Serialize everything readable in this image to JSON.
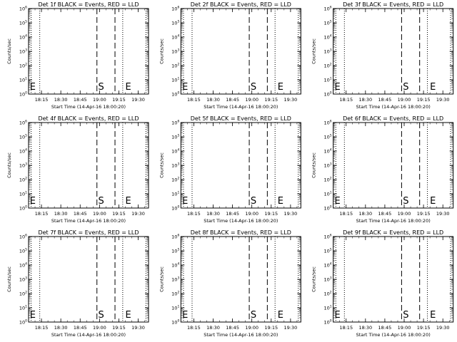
{
  "chart_data": [
    {
      "type": "line",
      "title": "Det 1f BLACK = Events, RED = LLD",
      "xlabel": "Start Time (14-Apr-16 18:00:20)",
      "ylabel": "Counts/sec",
      "x_range": [
        "18:05:00",
        "19:38:00"
      ],
      "y_scale": "log",
      "ylim": [
        1,
        1000000
      ],
      "x_ticks": [
        "18:15",
        "18:30",
        "18:45",
        "19:00",
        "19:15",
        "19:30"
      ],
      "y_ticks": [
        "10^0",
        "10^1",
        "10^2",
        "10^3",
        "10^4",
        "10^5",
        "10^6"
      ],
      "dotted_lines": [
        "18:07:00",
        "18:13:40",
        "19:18:00",
        "19:36:00"
      ],
      "dashed_lines": [
        "18:58:00",
        "19:12:00"
      ],
      "markers": [
        {
          "label": "E",
          "at": "18:06:00"
        },
        {
          "label": "S",
          "at": "18:59:00"
        },
        {
          "label": "E",
          "at": "19:20:00"
        }
      ],
      "series": []
    },
    {
      "type": "line",
      "title": "Det 2f BLACK = Events, RED = LLD",
      "xlabel": "Start Time (14-Apr-16 18:00:20)",
      "ylabel": "Counts/sec",
      "x_range": [
        "18:05:00",
        "19:38:00"
      ],
      "y_scale": "log",
      "ylim": [
        1,
        1000000
      ],
      "x_ticks": [
        "18:15",
        "18:30",
        "18:45",
        "19:00",
        "19:15",
        "19:30"
      ],
      "y_ticks": [
        "10^0",
        "10^1",
        "10^2",
        "10^3",
        "10^4",
        "10^5",
        "10^6"
      ],
      "dotted_lines": [
        "18:07:00",
        "18:13:40",
        "19:18:00",
        "19:36:00"
      ],
      "dashed_lines": [
        "18:58:00",
        "19:12:00"
      ],
      "markers": [
        {
          "label": "E",
          "at": "18:06:00"
        },
        {
          "label": "S",
          "at": "18:59:00"
        },
        {
          "label": "E",
          "at": "19:20:00"
        }
      ],
      "series": []
    },
    {
      "type": "line",
      "title": "Det 3f BLACK = Events, RED = LLD",
      "xlabel": "Start Time (14-Apr-16 18:00:20)",
      "ylabel": "Counts/sec",
      "x_range": [
        "18:05:00",
        "19:38:00"
      ],
      "y_scale": "log",
      "ylim": [
        1,
        1000000
      ],
      "x_ticks": [
        "18:15",
        "18:30",
        "18:45",
        "19:00",
        "19:15",
        "19:30"
      ],
      "y_ticks": [
        "10^0",
        "10^1",
        "10^2",
        "10^3",
        "10^4",
        "10^5",
        "10^6"
      ],
      "dotted_lines": [
        "18:07:00",
        "18:13:40",
        "19:18:00",
        "19:36:00"
      ],
      "dashed_lines": [
        "18:58:00",
        "19:12:00"
      ],
      "markers": [
        {
          "label": "E",
          "at": "18:06:00"
        },
        {
          "label": "S",
          "at": "18:59:00"
        },
        {
          "label": "E",
          "at": "19:20:00"
        }
      ],
      "series": []
    },
    {
      "type": "line",
      "title": "Det 4f BLACK = Events, RED = LLD",
      "xlabel": "Start Time (14-Apr-16 18:00:20)",
      "ylabel": "Counts/sec",
      "x_range": [
        "18:05:00",
        "19:38:00"
      ],
      "y_scale": "log",
      "ylim": [
        1,
        1000000
      ],
      "x_ticks": [
        "18:15",
        "18:30",
        "18:45",
        "19:00",
        "19:15",
        "19:30"
      ],
      "y_ticks": [
        "10^0",
        "10^1",
        "10^2",
        "10^3",
        "10^4",
        "10^5",
        "10^6"
      ],
      "dotted_lines": [
        "18:07:00",
        "18:13:40",
        "19:18:00",
        "19:36:00"
      ],
      "dashed_lines": [
        "18:58:00",
        "19:12:00"
      ],
      "markers": [
        {
          "label": "E",
          "at": "18:06:00"
        },
        {
          "label": "S",
          "at": "18:59:00"
        },
        {
          "label": "E",
          "at": "19:20:00"
        }
      ],
      "series": []
    },
    {
      "type": "line",
      "title": "Det 5f BLACK = Events, RED = LLD",
      "xlabel": "Start Time (14-Apr-16 18:00:20)",
      "ylabel": "Counts/sec",
      "x_range": [
        "18:05:00",
        "19:38:00"
      ],
      "y_scale": "log",
      "ylim": [
        1,
        1000000
      ],
      "x_ticks": [
        "18:15",
        "18:30",
        "18:45",
        "19:00",
        "19:15",
        "19:30"
      ],
      "y_ticks": [
        "10^0",
        "10^1",
        "10^2",
        "10^3",
        "10^4",
        "10^5",
        "10^6"
      ],
      "dotted_lines": [
        "18:07:00",
        "18:13:40",
        "19:18:00",
        "19:36:00"
      ],
      "dashed_lines": [
        "18:58:00",
        "19:12:00"
      ],
      "markers": [
        {
          "label": "E",
          "at": "18:06:00"
        },
        {
          "label": "S",
          "at": "18:59:00"
        },
        {
          "label": "E",
          "at": "19:20:00"
        }
      ],
      "series": []
    },
    {
      "type": "line",
      "title": "Det 6f BLACK = Events, RED = LLD",
      "xlabel": "Start Time (14-Apr-16 18:00:20)",
      "ylabel": "Counts/sec",
      "x_range": [
        "18:05:00",
        "19:38:00"
      ],
      "y_scale": "log",
      "ylim": [
        1,
        1000000
      ],
      "x_ticks": [
        "18:15",
        "18:30",
        "18:45",
        "19:00",
        "19:15",
        "19:30"
      ],
      "y_ticks": [
        "10^0",
        "10^1",
        "10^2",
        "10^3",
        "10^4",
        "10^5",
        "10^6"
      ],
      "dotted_lines": [
        "18:07:00",
        "18:13:40",
        "19:18:00",
        "19:36:00"
      ],
      "dashed_lines": [
        "18:58:00",
        "19:12:00"
      ],
      "markers": [
        {
          "label": "E",
          "at": "18:06:00"
        },
        {
          "label": "S",
          "at": "18:59:00"
        },
        {
          "label": "E",
          "at": "19:20:00"
        }
      ],
      "series": []
    },
    {
      "type": "line",
      "title": "Det 7f BLACK = Events, RED = LLD",
      "xlabel": "Start Time (14-Apr-16 18:00:20)",
      "ylabel": "Counts/sec",
      "x_range": [
        "18:05:00",
        "19:38:00"
      ],
      "y_scale": "log",
      "ylim": [
        1,
        1000000
      ],
      "x_ticks": [
        "18:15",
        "18:30",
        "18:45",
        "19:00",
        "19:15",
        "19:30"
      ],
      "y_ticks": [
        "10^0",
        "10^1",
        "10^2",
        "10^3",
        "10^4",
        "10^5",
        "10^6"
      ],
      "dotted_lines": [
        "18:07:00",
        "18:13:40",
        "19:18:00",
        "19:36:00"
      ],
      "dashed_lines": [
        "18:58:00",
        "19:12:00"
      ],
      "markers": [
        {
          "label": "E",
          "at": "18:06:00"
        },
        {
          "label": "S",
          "at": "18:59:00"
        },
        {
          "label": "E",
          "at": "19:20:00"
        }
      ],
      "series": []
    },
    {
      "type": "line",
      "title": "Det 8f BLACK = Events, RED = LLD",
      "xlabel": "Start Time (14-Apr-16 18:00:20)",
      "ylabel": "Counts/sec",
      "x_range": [
        "18:05:00",
        "19:38:00"
      ],
      "y_scale": "log",
      "ylim": [
        1,
        1000000
      ],
      "x_ticks": [
        "18:15",
        "18:30",
        "18:45",
        "19:00",
        "19:15",
        "19:30"
      ],
      "y_ticks": [
        "10^0",
        "10^1",
        "10^2",
        "10^3",
        "10^4",
        "10^5",
        "10^6"
      ],
      "dotted_lines": [
        "18:07:00",
        "18:13:40",
        "19:18:00",
        "19:36:00"
      ],
      "dashed_lines": [
        "18:58:00",
        "19:12:00"
      ],
      "markers": [
        {
          "label": "E",
          "at": "18:06:00"
        },
        {
          "label": "S",
          "at": "18:59:00"
        },
        {
          "label": "E",
          "at": "19:20:00"
        }
      ],
      "series": []
    },
    {
      "type": "line",
      "title": "Det 9f BLACK = Events, RED = LLD",
      "xlabel": "Start Time (14-Apr-16 18:00:20)",
      "ylabel": "Counts/sec",
      "x_range": [
        "18:05:00",
        "19:38:00"
      ],
      "y_scale": "log",
      "ylim": [
        1,
        1000000
      ],
      "x_ticks": [
        "18:15",
        "18:30",
        "18:45",
        "19:00",
        "19:15",
        "19:30"
      ],
      "y_ticks": [
        "10^0",
        "10^1",
        "10^2",
        "10^3",
        "10^4",
        "10^5",
        "10^6"
      ],
      "dotted_lines": [
        "18:07:00",
        "18:13:40",
        "19:18:00",
        "19:36:00"
      ],
      "dashed_lines": [
        "18:58:00",
        "19:12:00"
      ],
      "markers": [
        {
          "label": "E",
          "at": "18:06:00"
        },
        {
          "label": "S",
          "at": "18:59:00"
        },
        {
          "label": "E",
          "at": "19:20:00"
        }
      ],
      "series": []
    }
  ]
}
